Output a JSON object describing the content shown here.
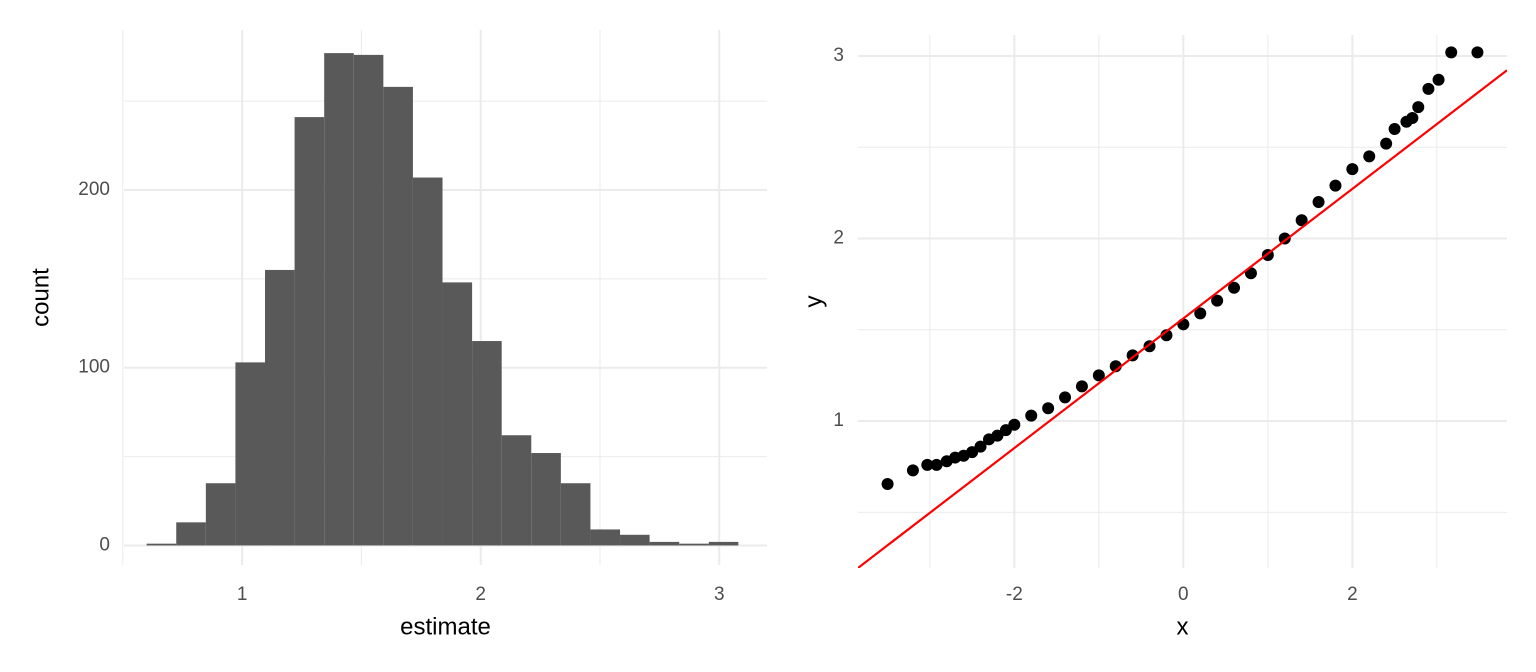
{
  "chart_data": [
    {
      "type": "histogram",
      "xlabel": "estimate",
      "ylabel": "count",
      "color": "#595959",
      "bins": [
        0.6,
        0.724,
        0.848,
        0.972,
        1.096,
        1.22,
        1.344,
        1.468,
        1.592,
        1.716,
        1.84,
        1.964,
        2.088,
        2.212,
        2.336,
        2.46,
        2.584,
        2.708,
        2.832,
        2.956,
        3.08
      ],
      "values": [
        1,
        13,
        35,
        103,
        155,
        241,
        277,
        276,
        258,
        207,
        148,
        115,
        62,
        52,
        35,
        9,
        6,
        2,
        1,
        2
      ],
      "xlim": [
        0.505,
        3.2
      ],
      "ylim": [
        -11,
        290
      ],
      "xticks": [
        1,
        2,
        3
      ],
      "yticks": [
        0,
        100,
        200
      ],
      "xminor": [
        0.5,
        1.5,
        2.5
      ],
      "yminor": [
        50,
        150,
        250
      ],
      "grid": true
    },
    {
      "type": "scatter",
      "xlabel": "x",
      "ylabel": "y",
      "color": "#000000",
      "x": [
        -3.5,
        -3.2,
        -3.03,
        -2.92,
        -2.8,
        -2.7,
        -2.6,
        -2.5,
        -2.4,
        -2.3,
        -2.2,
        -2.1,
        -2.0,
        -1.8,
        -1.6,
        -1.4,
        -1.2,
        -1.0,
        -0.8,
        -0.6,
        -0.4,
        -0.2,
        0,
        0.2,
        0.4,
        0.6,
        0.8,
        1.0,
        1.2,
        1.4,
        1.6,
        1.8,
        2.0,
        2.2,
        2.4,
        2.5,
        2.64,
        2.71,
        2.78,
        2.9,
        3.02,
        3.17,
        3.48
      ],
      "y": [
        0.655,
        0.73,
        0.76,
        0.76,
        0.78,
        0.8,
        0.81,
        0.83,
        0.86,
        0.9,
        0.92,
        0.95,
        0.98,
        1.03,
        1.07,
        1.13,
        1.19,
        1.25,
        1.3,
        1.36,
        1.41,
        1.47,
        1.53,
        1.59,
        1.66,
        1.73,
        1.81,
        1.91,
        2.0,
        2.1,
        2.2,
        2.29,
        2.38,
        2.45,
        2.52,
        2.6,
        2.64,
        2.66,
        2.72,
        2.82,
        2.87,
        3.02,
        3.02
      ],
      "line": {
        "slope": 0.355,
        "intercept": 1.562,
        "color": "#ff0000"
      },
      "xlim": [
        -3.85,
        3.83
      ],
      "ylim": [
        0.195,
        3.115
      ],
      "xticks": [
        -2,
        0,
        2
      ],
      "yticks": [
        1,
        2,
        3
      ],
      "xminor": [
        -3,
        -1,
        1,
        3
      ],
      "yminor": [
        0.5,
        1.5,
        2.5
      ],
      "grid": true
    }
  ]
}
